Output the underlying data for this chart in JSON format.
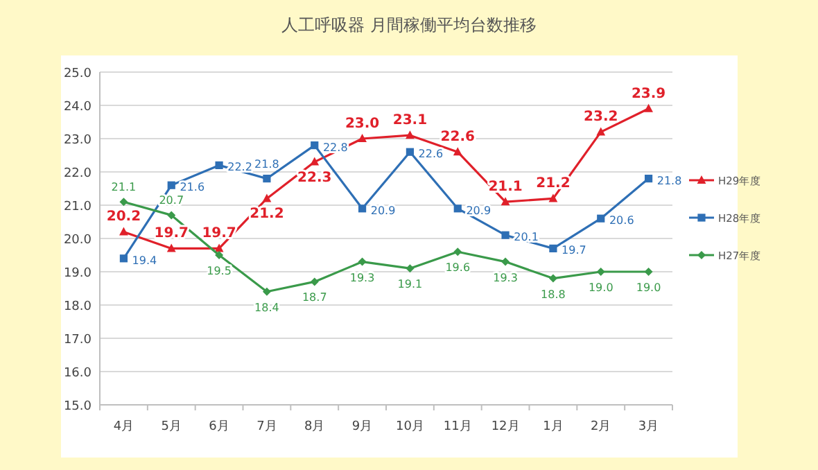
{
  "chart_data": {
    "type": "line",
    "title": "人工呼吸器 月間稼働平均台数推移",
    "categories": [
      "4月",
      "5月",
      "6月",
      "7月",
      "8月",
      "9月",
      "10月",
      "11月",
      "12月",
      "1月",
      "2月",
      "3月"
    ],
    "series": [
      {
        "name": "H29年度",
        "color": "#e0202a",
        "marker": "triangle",
        "values": [
          20.2,
          19.7,
          19.7,
          21.2,
          22.3,
          23.0,
          23.1,
          22.6,
          21.1,
          21.2,
          23.2,
          23.9
        ],
        "value_labels": [
          "20.2",
          "19.7",
          "19.7",
          "21.2",
          "22.3",
          "23.0",
          "23.1",
          "22.6",
          "21.1",
          "21.2",
          "23.2",
          "23.9"
        ]
      },
      {
        "name": "H28年度",
        "color": "#2e6fb5",
        "marker": "square",
        "values": [
          19.4,
          21.6,
          22.2,
          21.8,
          22.8,
          20.9,
          22.6,
          20.9,
          20.1,
          19.7,
          20.6,
          21.8
        ],
        "value_labels": [
          "19.4",
          "21.6",
          "22.2",
          "21.8",
          "22.8",
          "20.9",
          "22.6",
          "20.9",
          "20.1",
          "19.7",
          "20.6",
          "21.8"
        ]
      },
      {
        "name": "H27年度",
        "color": "#3a9a4a",
        "marker": "diamond",
        "values": [
          21.1,
          20.7,
          19.5,
          18.4,
          18.7,
          19.3,
          19.1,
          19.6,
          19.3,
          18.8,
          19.0,
          19.0
        ],
        "value_labels": [
          "21.1",
          "20.7",
          "19.5",
          "18.4",
          "18.7",
          "19.3",
          "19.1",
          "19.6",
          "19.3",
          "18.8",
          "19.0",
          "19.0"
        ]
      }
    ],
    "ylim": [
      15,
      25
    ],
    "yticks": [
      {
        "value": 15,
        "label": "15.0"
      },
      {
        "value": 16,
        "label": "16.0"
      },
      {
        "value": 17,
        "label": "17.0"
      },
      {
        "value": 18,
        "label": "18.0"
      },
      {
        "value": 19,
        "label": "19.0"
      },
      {
        "value": 20,
        "label": "20.0"
      },
      {
        "value": 21,
        "label": "21.0"
      },
      {
        "value": 22,
        "label": "22.0"
      },
      {
        "value": 23,
        "label": "23.0"
      },
      {
        "value": 24,
        "label": "24.0"
      },
      {
        "value": 25,
        "label": "25.0"
      }
    ],
    "grid": "y",
    "legend": "right"
  }
}
